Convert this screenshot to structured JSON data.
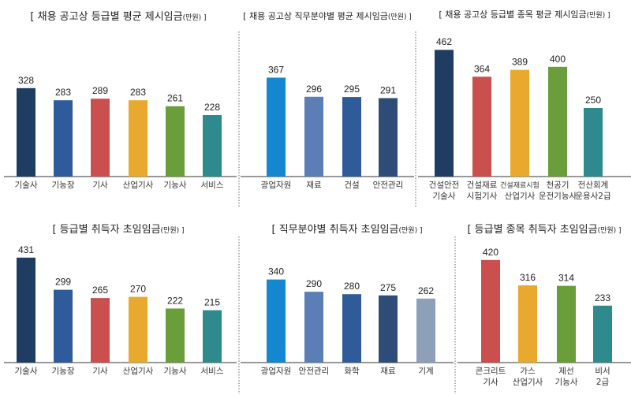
{
  "chart_data": [
    {
      "type": "bar",
      "title": "[ 채용 공고상 등급별 평균 제시임금",
      "unit": "(만원) ]",
      "categories": [
        "기술사",
        "기능장",
        "기사",
        "산업기사",
        "기능사",
        "서비스"
      ],
      "values": [
        328,
        283,
        289,
        283,
        261,
        228
      ],
      "colors": [
        "#1f3d63",
        "#2e5b9a",
        "#c9504f",
        "#e8a92e",
        "#6a9e3a",
        "#2e8a8c"
      ]
    },
    {
      "type": "bar",
      "title": "[ 채용 공고상 직무분야별 평균 제시임금",
      "unit": "(만원) ]",
      "categories": [
        "광업자원",
        "재료",
        "건설",
        "안전관리"
      ],
      "values": [
        367,
        296,
        295,
        291
      ],
      "colors": [
        "#1587d0",
        "#5b7fb5",
        "#2f5b98",
        "#2e4c78"
      ]
    },
    {
      "type": "bar",
      "title": "[ 채용 공고상 등급별 종목 평균 제시임금",
      "unit": "(만원) ]",
      "categories": [
        "건설안전\n기술사",
        "건설재료\n시험기사",
        "건설재료시험\n산업기사",
        "천공기\n운전기능사",
        "전산회계\n운용사2급"
      ],
      "values": [
        462,
        364,
        389,
        400,
        250
      ],
      "colors": [
        "#1f3d63",
        "#c9504f",
        "#e8a92e",
        "#6a9e3a",
        "#2e8a8c"
      ]
    },
    {
      "type": "bar",
      "title": "[ 등급별 취득자 초임임금",
      "unit": "(만원) ]",
      "categories": [
        "기술사",
        "기능장",
        "기사",
        "산업기사",
        "기능사",
        "서비스"
      ],
      "values": [
        431,
        299,
        265,
        270,
        222,
        215
      ],
      "colors": [
        "#1f3d63",
        "#2e5b9a",
        "#c9504f",
        "#e8a92e",
        "#6a9e3a",
        "#2e8a8c"
      ]
    },
    {
      "type": "bar",
      "title": "[ 직무분야별 취득자 초임임금",
      "unit": "(만원) ]",
      "categories": [
        "광업자원",
        "안전관리",
        "화학",
        "재료",
        "기계"
      ],
      "values": [
        340,
        290,
        280,
        275,
        262
      ],
      "colors": [
        "#1587d0",
        "#5b7fb5",
        "#2f5b98",
        "#2e4c78",
        "#8ea0b8"
      ]
    },
    {
      "type": "bar",
      "title": "[ 등급별 종목 취득자 초임임금",
      "unit": "(만원) ]",
      "categories": [
        "콘크리트\n기사",
        "가스\n산업기사",
        "제선\n기능사",
        "비서\n2급"
      ],
      "values": [
        420,
        316,
        314,
        233
      ],
      "colors": [
        "#c9504f",
        "#e8a92e",
        "#6a9e3a",
        "#2e8a8c"
      ]
    }
  ]
}
